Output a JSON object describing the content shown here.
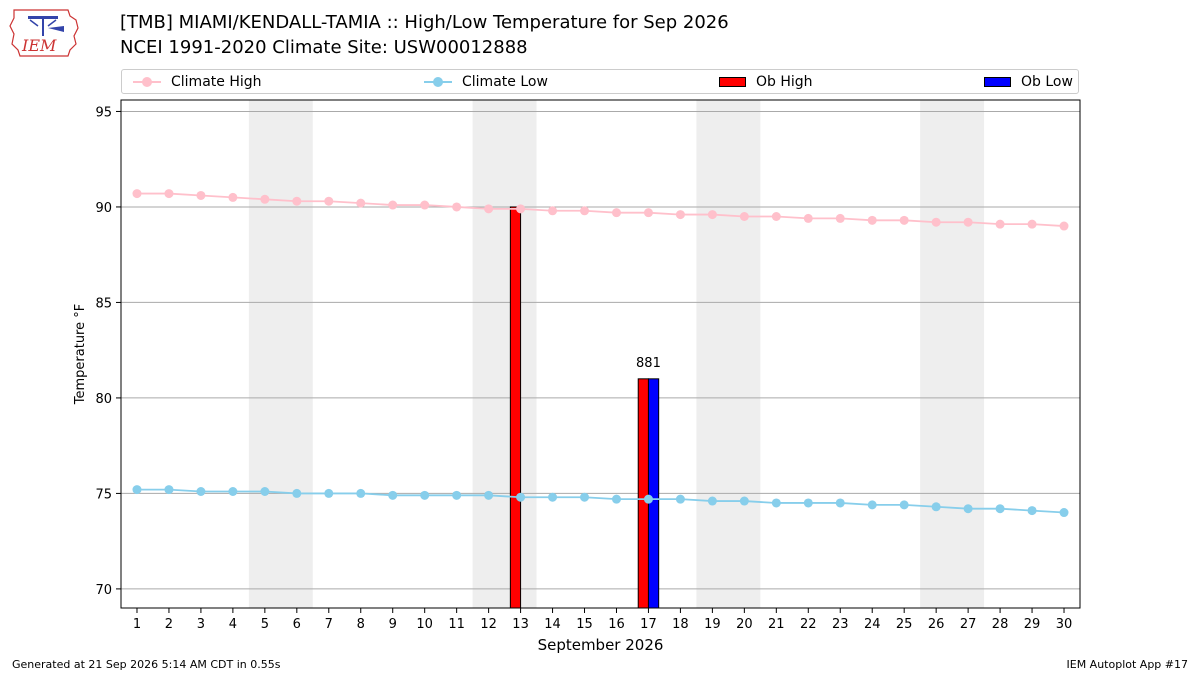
{
  "header": {
    "title_line1": "[TMB] MIAMI/KENDALL-TAMIA :: High/Low Temperature for Sep 2026",
    "title_line2": "NCEI 1991-2020 Climate Site: USW00012888",
    "logo_text": "IEM"
  },
  "footer": {
    "generated": "Generated at 21 Sep 2026 5:14 AM CDT in 0.55s",
    "app": "IEM Autoplot App #17"
  },
  "colors": {
    "climate_high": "#ffc0cb",
    "climate_low": "#87ceeb",
    "ob_high": "#ff0000",
    "ob_low": "#0000ff",
    "weekend_band": "#eeeeee",
    "grid": "#aaaaaa"
  },
  "chart_data": {
    "type": "bar",
    "xlabel": "September 2026",
    "ylabel": "Temperature °F",
    "xlim": [
      0.5,
      30.5
    ],
    "ylim": [
      69,
      95.6
    ],
    "yticks": [
      70,
      75,
      80,
      85,
      90,
      95
    ],
    "xticks": [
      1,
      2,
      3,
      4,
      5,
      6,
      7,
      8,
      9,
      10,
      11,
      12,
      13,
      14,
      15,
      16,
      17,
      18,
      19,
      20,
      21,
      22,
      23,
      24,
      25,
      26,
      27,
      28,
      29,
      30
    ],
    "grid": "horizontal",
    "legend_position": "top",
    "weekend_bands": [
      [
        4.5,
        6.5
      ],
      [
        11.5,
        13.5
      ],
      [
        18.5,
        20.5
      ],
      [
        25.5,
        27.5
      ]
    ],
    "series": [
      {
        "name": "Climate High",
        "kind": "line",
        "x": [
          1,
          2,
          3,
          4,
          5,
          6,
          7,
          8,
          9,
          10,
          11,
          12,
          13,
          14,
          15,
          16,
          17,
          18,
          19,
          20,
          21,
          22,
          23,
          24,
          25,
          26,
          27,
          28,
          29,
          30
        ],
        "values": [
          90.7,
          90.7,
          90.6,
          90.5,
          90.4,
          90.3,
          90.3,
          90.2,
          90.1,
          90.1,
          90.0,
          89.9,
          89.9,
          89.8,
          89.8,
          89.7,
          89.7,
          89.6,
          89.6,
          89.5,
          89.5,
          89.4,
          89.4,
          89.3,
          89.3,
          89.2,
          89.2,
          89.1,
          89.1,
          89.0
        ]
      },
      {
        "name": "Climate Low",
        "kind": "line",
        "x": [
          1,
          2,
          3,
          4,
          5,
          6,
          7,
          8,
          9,
          10,
          11,
          12,
          13,
          14,
          15,
          16,
          17,
          18,
          19,
          20,
          21,
          22,
          23,
          24,
          25,
          26,
          27,
          28,
          29,
          30
        ],
        "values": [
          75.2,
          75.2,
          75.1,
          75.1,
          75.1,
          75.0,
          75.0,
          75.0,
          74.9,
          74.9,
          74.9,
          74.9,
          74.8,
          74.8,
          74.8,
          74.7,
          74.7,
          74.7,
          74.6,
          74.6,
          74.5,
          74.5,
          74.5,
          74.4,
          74.4,
          74.3,
          74.2,
          74.2,
          74.1,
          74.0
        ]
      },
      {
        "name": "Ob High",
        "kind": "bar",
        "x": [
          13,
          17
        ],
        "values": [
          90,
          81
        ]
      },
      {
        "name": "Ob Low",
        "kind": "bar",
        "x": [
          17
        ],
        "values": [
          81
        ]
      }
    ],
    "annotations": [
      {
        "x": 17,
        "y": 81,
        "text": "881"
      }
    ]
  }
}
